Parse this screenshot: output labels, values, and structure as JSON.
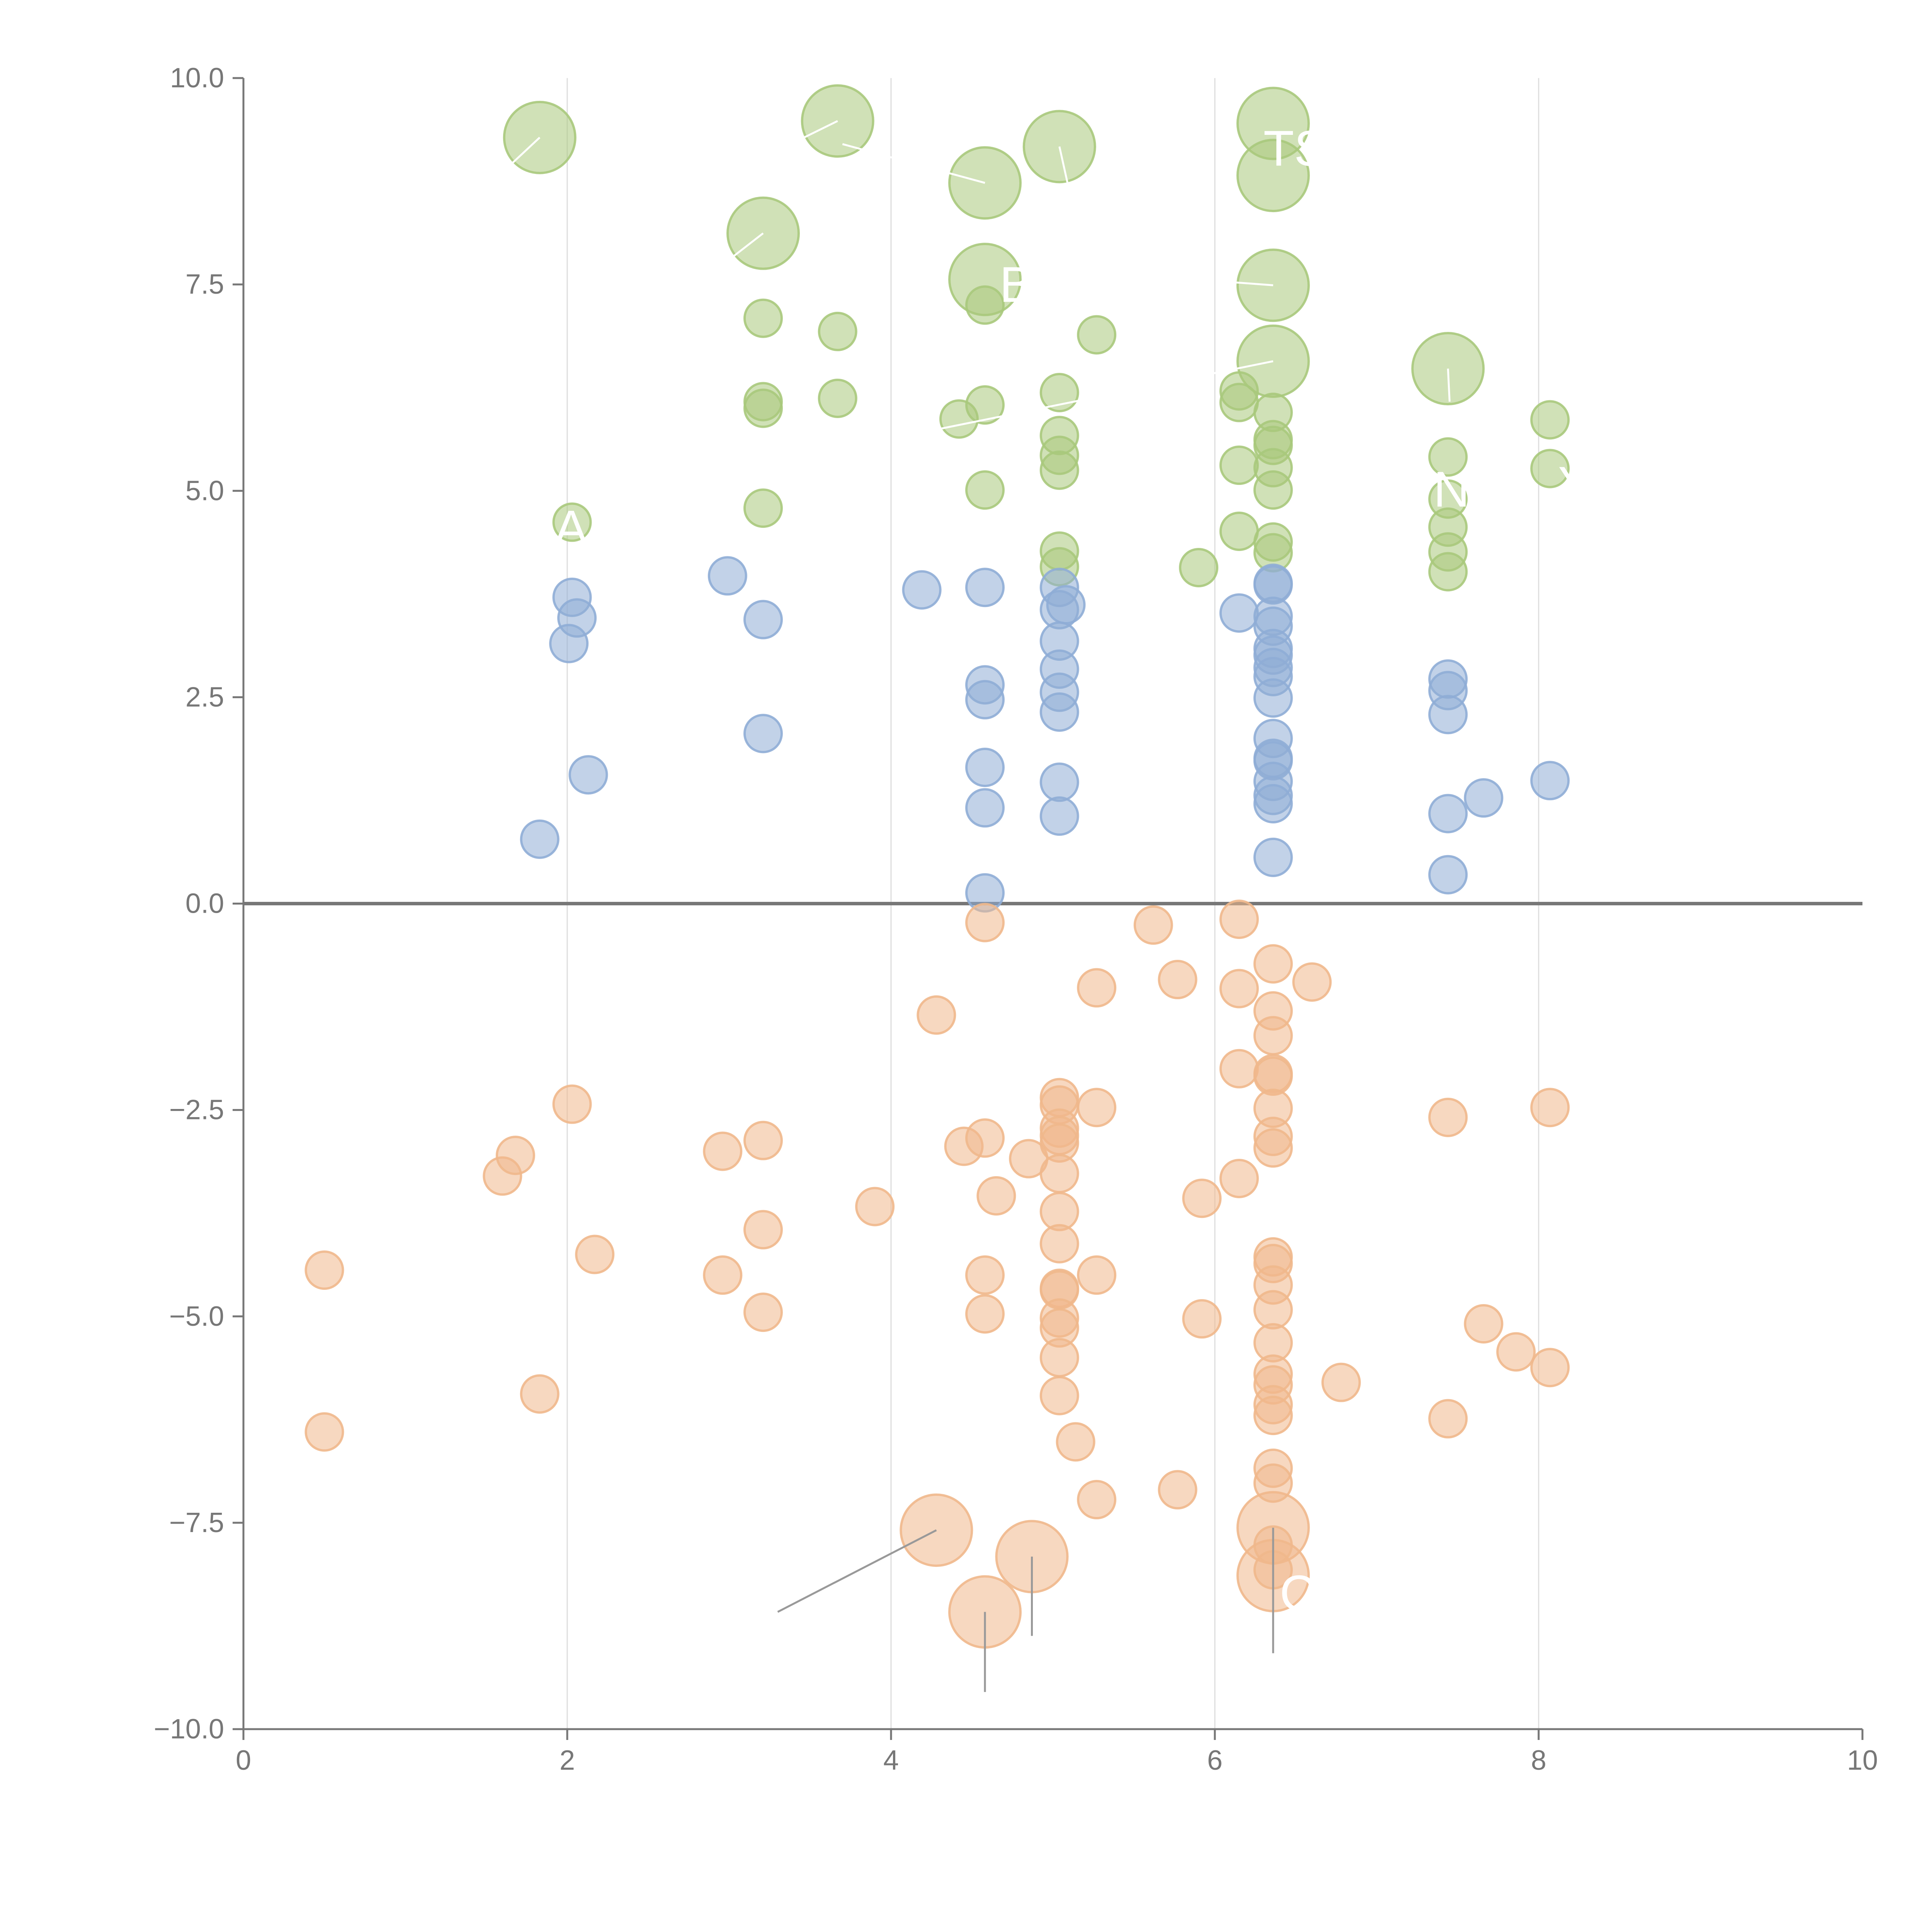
{
  "colors": {
    "background": "#ffffff",
    "axis": "#777777",
    "grid": "#dddddd",
    "zero_line": "#777777",
    "leader_line_dark": "#999999",
    "leader_line_light": "#ffffff",
    "label_text": "#ffffff"
  },
  "chart_data": {
    "type": "scatter",
    "title": "",
    "xlabel": "",
    "ylabel": "",
    "xlim": [
      0,
      10
    ],
    "ylim": [
      -10,
      10
    ],
    "x_ticks": [
      0,
      2,
      4,
      6,
      8,
      10
    ],
    "x_tick_labels": [
      "0",
      "2",
      "4",
      "6",
      "8",
      "10"
    ],
    "y_ticks": [
      10,
      7.5,
      5,
      2.5,
      0,
      -2.5,
      -5,
      -7.5,
      -10
    ],
    "y_tick_labels": [
      "10.0",
      "7.5",
      "5.0",
      "2.5",
      "0.0",
      "−2.5",
      "−5.0",
      "−7.5",
      "−10.0"
    ],
    "grid": "vertical",
    "zero_line": true,
    "legend": "none",
    "point_size_units": "relative (1 = small, 2 = large)",
    "series": [
      {
        "name": "green",
        "color": "#a9c97c",
        "points": [
          [
            1.83,
            9.28,
            2
          ],
          [
            3.67,
            9.48,
            2
          ],
          [
            4.58,
            8.73,
            2
          ],
          [
            5.04,
            9.17,
            2
          ],
          [
            6.36,
            9.45,
            2
          ],
          [
            6.36,
            8.82,
            2
          ],
          [
            3.21,
            8.12,
            2
          ],
          [
            4.58,
            7.56,
            2
          ],
          [
            6.36,
            7.49,
            2
          ],
          [
            6.36,
            6.57,
            2
          ],
          [
            7.44,
            6.48,
            2
          ],
          [
            2.03,
            4.62,
            1
          ],
          [
            3.21,
            7.09,
            1
          ],
          [
            3.21,
            6.08,
            1
          ],
          [
            3.21,
            6.0,
            1
          ],
          [
            3.21,
            4.79,
            1
          ],
          [
            3.67,
            6.93,
            1
          ],
          [
            3.67,
            6.12,
            1
          ],
          [
            4.42,
            5.87,
            1
          ],
          [
            4.58,
            7.25,
            1
          ],
          [
            4.58,
            6.04,
            1
          ],
          [
            4.58,
            5.01,
            1
          ],
          [
            5.04,
            6.19,
            1
          ],
          [
            5.04,
            5.67,
            1
          ],
          [
            5.04,
            5.43,
            1
          ],
          [
            5.04,
            5.25,
            1
          ],
          [
            5.04,
            4.27,
            1
          ],
          [
            5.04,
            4.08,
            1
          ],
          [
            5.27,
            6.89,
            1
          ],
          [
            5.9,
            4.07,
            1
          ],
          [
            6.15,
            6.21,
            1
          ],
          [
            6.15,
            6.07,
            1
          ],
          [
            6.15,
            5.31,
            1
          ],
          [
            6.15,
            4.51,
            1
          ],
          [
            6.36,
            5.95,
            1
          ],
          [
            6.36,
            5.62,
            1
          ],
          [
            6.36,
            5.55,
            1
          ],
          [
            6.36,
            5.28,
            1
          ],
          [
            6.36,
            5.01,
            1
          ],
          [
            6.36,
            4.38,
            1
          ],
          [
            6.36,
            4.25,
            1
          ],
          [
            7.44,
            5.41,
            1
          ],
          [
            7.44,
            4.9,
            1
          ],
          [
            7.44,
            4.56,
            1
          ],
          [
            7.44,
            4.26,
            1
          ],
          [
            7.44,
            4.02,
            1
          ],
          [
            8.07,
            5.86,
            1
          ],
          [
            8.07,
            5.27,
            1
          ]
        ]
      },
      {
        "name": "blue",
        "color": "#8fadd6",
        "points": [
          [
            2.03,
            3.71,
            1
          ],
          [
            2.06,
            3.46,
            1
          ],
          [
            2.01,
            3.15,
            1
          ],
          [
            2.13,
            1.56,
            1
          ],
          [
            1.83,
            0.78,
            1
          ],
          [
            2.99,
            3.97,
            1
          ],
          [
            3.21,
            3.44,
            1
          ],
          [
            3.21,
            2.06,
            1
          ],
          [
            4.19,
            3.8,
            1
          ],
          [
            4.58,
            3.83,
            1
          ],
          [
            4.58,
            2.65,
            1
          ],
          [
            4.58,
            2.47,
            1
          ],
          [
            4.58,
            1.65,
            1
          ],
          [
            4.58,
            1.16,
            1
          ],
          [
            4.58,
            0.13,
            1
          ],
          [
            5.04,
            3.83,
            1
          ],
          [
            5.04,
            3.56,
            1
          ],
          [
            5.08,
            3.62,
            1
          ],
          [
            5.04,
            3.18,
            1
          ],
          [
            5.04,
            2.84,
            1
          ],
          [
            5.04,
            2.56,
            1
          ],
          [
            5.04,
            2.32,
            1
          ],
          [
            5.04,
            1.47,
            1
          ],
          [
            5.04,
            1.06,
            1
          ],
          [
            6.15,
            3.52,
            1
          ],
          [
            6.36,
            3.88,
            1
          ],
          [
            6.36,
            3.86,
            1
          ],
          [
            6.36,
            3.48,
            1
          ],
          [
            6.36,
            3.36,
            1
          ],
          [
            6.36,
            3.09,
            1
          ],
          [
            6.36,
            3.01,
            1
          ],
          [
            6.36,
            2.86,
            1
          ],
          [
            6.36,
            2.75,
            1
          ],
          [
            6.36,
            2.49,
            1
          ],
          [
            6.36,
            2.0,
            1
          ],
          [
            6.36,
            1.76,
            1
          ],
          [
            6.36,
            1.73,
            1
          ],
          [
            6.36,
            1.48,
            1
          ],
          [
            6.36,
            1.31,
            1
          ],
          [
            6.36,
            1.21,
            1
          ],
          [
            6.36,
            0.56,
            1
          ],
          [
            7.44,
            2.72,
            1
          ],
          [
            7.44,
            2.58,
            1
          ],
          [
            7.44,
            2.29,
            1
          ],
          [
            7.44,
            1.09,
            1
          ],
          [
            7.44,
            0.35,
            1
          ],
          [
            7.66,
            1.28,
            1
          ],
          [
            8.07,
            1.49,
            1
          ]
        ]
      },
      {
        "name": "orange",
        "color": "#f0b88c",
        "points": [
          [
            4.28,
            -7.59,
            2
          ],
          [
            4.58,
            -8.58,
            2
          ],
          [
            4.87,
            -7.91,
            2
          ],
          [
            6.36,
            -7.56,
            2
          ],
          [
            6.36,
            -8.14,
            2
          ],
          [
            0.5,
            -4.44,
            1
          ],
          [
            0.5,
            -6.4,
            1
          ],
          [
            1.6,
            -3.3,
            1
          ],
          [
            1.68,
            -3.05,
            1
          ],
          [
            1.83,
            -5.94,
            1
          ],
          [
            2.03,
            -2.43,
            1
          ],
          [
            2.17,
            -4.25,
            1
          ],
          [
            2.96,
            -3.0,
            1
          ],
          [
            2.96,
            -4.5,
            1
          ],
          [
            3.21,
            -2.87,
            1
          ],
          [
            3.21,
            -3.95,
            1
          ],
          [
            3.21,
            -4.95,
            1
          ],
          [
            3.9,
            -3.67,
            1
          ],
          [
            4.28,
            -1.35,
            1
          ],
          [
            4.45,
            -2.94,
            1
          ],
          [
            4.58,
            -0.23,
            1
          ],
          [
            4.58,
            -2.84,
            1
          ],
          [
            4.58,
            -4.5,
            1
          ],
          [
            4.58,
            -4.97,
            1
          ],
          [
            4.65,
            -3.54,
            1
          ],
          [
            4.85,
            -3.09,
            1
          ],
          [
            5.04,
            -2.35,
            1
          ],
          [
            5.04,
            -2.44,
            1
          ],
          [
            5.04,
            -2.72,
            1
          ],
          [
            5.04,
            -2.81,
            1
          ],
          [
            5.04,
            -2.9,
            1
          ],
          [
            5.04,
            -3.27,
            1
          ],
          [
            5.04,
            -3.73,
            1
          ],
          [
            5.04,
            -4.12,
            1
          ],
          [
            5.04,
            -4.66,
            1
          ],
          [
            5.04,
            -4.68,
            1
          ],
          [
            5.04,
            -5.02,
            1
          ],
          [
            5.04,
            -5.14,
            1
          ],
          [
            5.04,
            -5.5,
            1
          ],
          [
            5.04,
            -5.96,
            1
          ],
          [
            5.14,
            -6.52,
            1
          ],
          [
            5.27,
            -1.02,
            1
          ],
          [
            5.27,
            -2.47,
            1
          ],
          [
            5.27,
            -4.5,
            1
          ],
          [
            5.27,
            -7.22,
            1
          ],
          [
            5.62,
            -0.26,
            1
          ],
          [
            5.77,
            -0.92,
            1
          ],
          [
            5.77,
            -7.1,
            1
          ],
          [
            5.92,
            -3.57,
            1
          ],
          [
            5.92,
            -5.03,
            1
          ],
          [
            6.15,
            -0.19,
            1
          ],
          [
            6.15,
            -1.03,
            1
          ],
          [
            6.15,
            -2.0,
            1
          ],
          [
            6.15,
            -3.33,
            1
          ],
          [
            6.36,
            -0.73,
            1
          ],
          [
            6.36,
            -1.3,
            1
          ],
          [
            6.36,
            -1.6,
            1
          ],
          [
            6.36,
            -2.06,
            1
          ],
          [
            6.36,
            -2.09,
            1
          ],
          [
            6.36,
            -2.48,
            1
          ],
          [
            6.36,
            -2.82,
            1
          ],
          [
            6.36,
            -2.96,
            1
          ],
          [
            6.36,
            -4.28,
            1
          ],
          [
            6.36,
            -4.36,
            1
          ],
          [
            6.36,
            -4.62,
            1
          ],
          [
            6.36,
            -4.92,
            1
          ],
          [
            6.36,
            -5.32,
            1
          ],
          [
            6.36,
            -5.7,
            1
          ],
          [
            6.36,
            -5.83,
            1
          ],
          [
            6.36,
            -6.07,
            1
          ],
          [
            6.36,
            -6.2,
            1
          ],
          [
            6.36,
            -6.84,
            1
          ],
          [
            6.36,
            -7.02,
            1
          ],
          [
            6.36,
            -7.77,
            1
          ],
          [
            6.36,
            -8.07,
            1
          ],
          [
            6.6,
            -0.95,
            1
          ],
          [
            6.78,
            -5.8,
            1
          ],
          [
            7.44,
            -2.59,
            1
          ],
          [
            7.44,
            -6.24,
            1
          ],
          [
            7.66,
            -5.09,
            1
          ],
          [
            7.86,
            -5.43,
            1
          ],
          [
            8.07,
            -2.47,
            1
          ],
          [
            8.07,
            -5.62,
            1
          ]
        ]
      }
    ],
    "leader_lines": [
      {
        "from": [
          1.65,
          8.95
        ],
        "to": [
          1.83,
          9.28
        ],
        "tone": "light"
      },
      {
        "from": [
          3.38,
          9.2
        ],
        "to": [
          3.67,
          9.48
        ],
        "tone": "light"
      },
      {
        "from": [
          3.7,
          9.2
        ],
        "to": [
          4.58,
          8.73
        ],
        "tone": "light"
      },
      {
        "from": [
          5.09,
          8.73
        ],
        "to": [
          5.04,
          9.17
        ],
        "tone": "light"
      },
      {
        "from": [
          3.0,
          7.8
        ],
        "to": [
          3.21,
          8.12
        ],
        "tone": "light"
      },
      {
        "from": [
          6.02,
          7.54
        ],
        "to": [
          6.36,
          7.49
        ],
        "tone": "light"
      },
      {
        "from": [
          4.3,
          5.75
        ],
        "to": [
          6.36,
          6.57
        ],
        "tone": "light"
      },
      {
        "from": [
          7.45,
          6.08
        ],
        "to": [
          7.44,
          6.48
        ],
        "tone": "light"
      },
      {
        "from": [
          3.3,
          -8.58
        ],
        "to": [
          4.28,
          -7.59
        ],
        "tone": "dark"
      },
      {
        "from": [
          4.58,
          -9.55
        ],
        "to": [
          4.58,
          -8.58
        ],
        "tone": "dark"
      },
      {
        "from": [
          4.87,
          -8.87
        ],
        "to": [
          4.87,
          -7.91
        ],
        "tone": "dark"
      },
      {
        "from": [
          6.36,
          -9.08
        ],
        "to": [
          6.36,
          -7.56
        ],
        "tone": "dark"
      }
    ],
    "annotations": [
      {
        "text": "TS",
        "x": 6.3,
        "y": 9.15
      },
      {
        "text": "B",
        "x": 4.67,
        "y": 7.5
      },
      {
        "text": "N",
        "x": 7.35,
        "y": 5.02
      },
      {
        "text": "Y",
        "x": 8.12,
        "y": 5.08
      },
      {
        "text": "A",
        "x": 1.92,
        "y": 4.55
      },
      {
        "text": "C",
        "x": 6.4,
        "y": -8.35
      }
    ]
  }
}
